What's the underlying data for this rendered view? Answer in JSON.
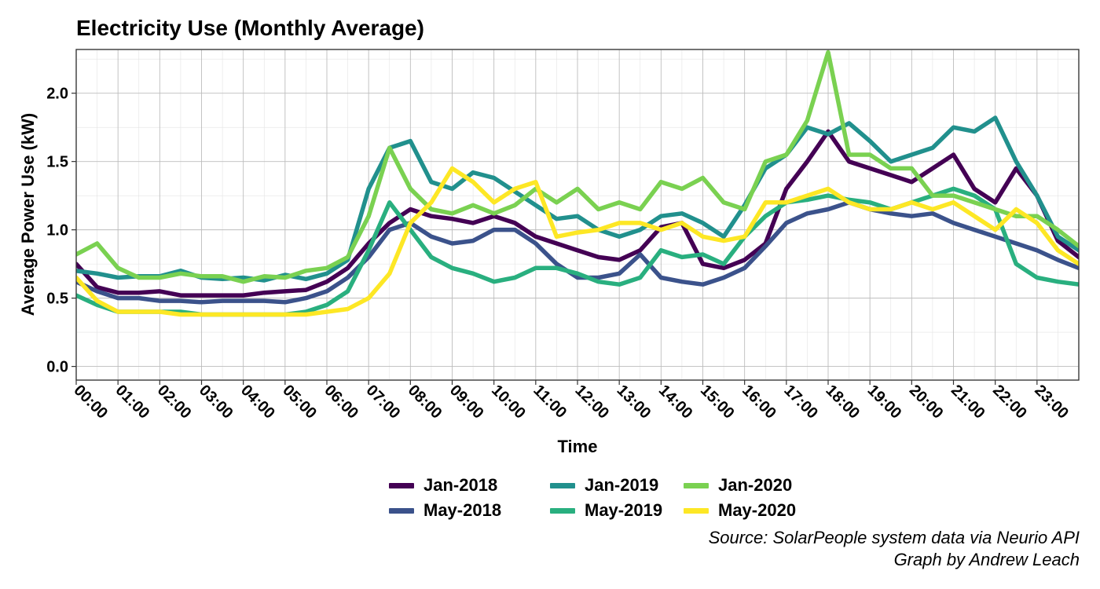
{
  "chart_data": {
    "type": "line",
    "title": "Electricity Use (Monthly Average)",
    "xlabel": "Time",
    "ylabel": "Average Power Use (kW)",
    "x_ticks": [
      "00:00",
      "01:00",
      "02:00",
      "03:00",
      "04:00",
      "05:00",
      "06:00",
      "07:00",
      "08:00",
      "09:00",
      "10:00",
      "11:00",
      "12:00",
      "13:00",
      "14:00",
      "15:00",
      "16:00",
      "17:00",
      "18:00",
      "19:00",
      "20:00",
      "21:00",
      "22:00",
      "23:00"
    ],
    "y_ticks": [
      "0.0",
      "0.5",
      "1.0",
      "1.5",
      "2.0"
    ],
    "ylim": [
      -0.1,
      2.32
    ],
    "x_range_hours": [
      0,
      24
    ],
    "grid": true,
    "legend_position": "bottom",
    "series": [
      {
        "name": "Jan-2018",
        "color": "#440154",
        "x": [
          0,
          0.5,
          1,
          1.5,
          2,
          2.5,
          3,
          3.5,
          4,
          4.5,
          5,
          5.5,
          6,
          6.5,
          7,
          7.5,
          8,
          8.5,
          9,
          9.5,
          10,
          10.5,
          11,
          11.5,
          12,
          12.5,
          13,
          13.5,
          14,
          14.5,
          15,
          15.5,
          16,
          16.5,
          17,
          17.5,
          18,
          18.5,
          19,
          19.5,
          20,
          20.5,
          21,
          21.5,
          22,
          22.5,
          23,
          23.5,
          24
        ],
        "y": [
          0.75,
          0.58,
          0.54,
          0.54,
          0.55,
          0.52,
          0.52,
          0.52,
          0.52,
          0.54,
          0.55,
          0.56,
          0.62,
          0.72,
          0.9,
          1.05,
          1.15,
          1.1,
          1.08,
          1.05,
          1.1,
          1.05,
          0.95,
          0.9,
          0.85,
          0.8,
          0.78,
          0.85,
          1.02,
          1.05,
          0.75,
          0.72,
          0.78,
          0.9,
          1.3,
          1.5,
          1.72,
          1.5,
          1.45,
          1.4,
          1.35,
          1.45,
          1.55,
          1.3,
          1.2,
          1.45,
          1.25,
          0.92,
          0.8
        ]
      },
      {
        "name": "May-2018",
        "color": "#3b528b",
        "x": [
          0,
          0.5,
          1,
          1.5,
          2,
          2.5,
          3,
          3.5,
          4,
          4.5,
          5,
          5.5,
          6,
          6.5,
          7,
          7.5,
          8,
          8.5,
          9,
          9.5,
          10,
          10.5,
          11,
          11.5,
          12,
          12.5,
          13,
          13.5,
          14,
          14.5,
          15,
          15.5,
          16,
          16.5,
          17,
          17.5,
          18,
          18.5,
          19,
          19.5,
          20,
          20.5,
          21,
          21.5,
          22,
          22.5,
          23,
          23.5,
          24
        ],
        "y": [
          0.62,
          0.55,
          0.5,
          0.5,
          0.48,
          0.48,
          0.47,
          0.48,
          0.48,
          0.48,
          0.47,
          0.5,
          0.55,
          0.65,
          0.8,
          1.0,
          1.05,
          0.95,
          0.9,
          0.92,
          1.0,
          1.0,
          0.9,
          0.75,
          0.65,
          0.65,
          0.68,
          0.82,
          0.65,
          0.62,
          0.6,
          0.65,
          0.72,
          0.88,
          1.05,
          1.12,
          1.15,
          1.2,
          1.15,
          1.12,
          1.1,
          1.12,
          1.05,
          1.0,
          0.95,
          0.9,
          0.85,
          0.78,
          0.72
        ]
      },
      {
        "name": "Jan-2019",
        "color": "#21908d",
        "x": [
          0,
          0.5,
          1,
          1.5,
          2,
          2.5,
          3,
          3.5,
          4,
          4.5,
          5,
          5.5,
          6,
          6.5,
          7,
          7.5,
          8,
          8.5,
          9,
          9.5,
          10,
          10.5,
          11,
          11.5,
          12,
          12.5,
          13,
          13.5,
          14,
          14.5,
          15,
          15.5,
          16,
          16.5,
          17,
          17.5,
          18,
          18.5,
          19,
          19.5,
          20,
          20.5,
          21,
          21.5,
          22,
          22.5,
          23,
          23.5,
          24
        ],
        "y": [
          0.7,
          0.68,
          0.65,
          0.66,
          0.66,
          0.7,
          0.65,
          0.64,
          0.65,
          0.63,
          0.67,
          0.64,
          0.68,
          0.78,
          1.3,
          1.6,
          1.65,
          1.35,
          1.3,
          1.42,
          1.38,
          1.28,
          1.18,
          1.08,
          1.1,
          1.0,
          0.95,
          1.0,
          1.1,
          1.12,
          1.05,
          0.95,
          1.18,
          1.45,
          1.55,
          1.75,
          1.7,
          1.78,
          1.65,
          1.5,
          1.55,
          1.6,
          1.75,
          1.72,
          1.82,
          1.5,
          1.25,
          0.95,
          0.85
        ]
      },
      {
        "name": "May-2019",
        "color": "#29af7f",
        "x": [
          0,
          0.5,
          1,
          1.5,
          2,
          2.5,
          3,
          3.5,
          4,
          4.5,
          5,
          5.5,
          6,
          6.5,
          7,
          7.5,
          8,
          8.5,
          9,
          9.5,
          10,
          10.5,
          11,
          11.5,
          12,
          12.5,
          13,
          13.5,
          14,
          14.5,
          15,
          15.5,
          16,
          16.5,
          17,
          17.5,
          18,
          18.5,
          19,
          19.5,
          20,
          20.5,
          21,
          21.5,
          22,
          22.5,
          23,
          23.5,
          24
        ],
        "y": [
          0.52,
          0.45,
          0.4,
          0.4,
          0.4,
          0.4,
          0.38,
          0.38,
          0.38,
          0.38,
          0.38,
          0.4,
          0.45,
          0.55,
          0.85,
          1.2,
          1.0,
          0.8,
          0.72,
          0.68,
          0.62,
          0.65,
          0.72,
          0.72,
          0.68,
          0.62,
          0.6,
          0.65,
          0.85,
          0.8,
          0.82,
          0.75,
          0.95,
          1.1,
          1.2,
          1.22,
          1.25,
          1.22,
          1.2,
          1.15,
          1.2,
          1.25,
          1.3,
          1.25,
          1.15,
          0.75,
          0.65,
          0.62,
          0.6
        ]
      },
      {
        "name": "Jan-2020",
        "color": "#7ad151",
        "x": [
          0,
          0.5,
          1,
          1.5,
          2,
          2.5,
          3,
          3.5,
          4,
          4.5,
          5,
          5.5,
          6,
          6.5,
          7,
          7.5,
          8,
          8.5,
          9,
          9.5,
          10,
          10.5,
          11,
          11.5,
          12,
          12.5,
          13,
          13.5,
          14,
          14.5,
          15,
          15.5,
          16,
          16.5,
          17,
          17.5,
          18,
          18.5,
          19,
          19.5,
          20,
          20.5,
          21,
          21.5,
          22,
          22.5,
          23,
          23.5,
          24
        ],
        "y": [
          0.82,
          0.9,
          0.72,
          0.65,
          0.65,
          0.68,
          0.66,
          0.66,
          0.62,
          0.66,
          0.65,
          0.7,
          0.72,
          0.8,
          1.1,
          1.6,
          1.3,
          1.15,
          1.12,
          1.18,
          1.12,
          1.18,
          1.3,
          1.2,
          1.3,
          1.15,
          1.2,
          1.15,
          1.35,
          1.3,
          1.38,
          1.2,
          1.15,
          1.5,
          1.55,
          1.8,
          2.3,
          1.55,
          1.55,
          1.45,
          1.45,
          1.25,
          1.25,
          1.2,
          1.15,
          1.1,
          1.1,
          1.0,
          0.88
        ]
      },
      {
        "name": "May-2020",
        "color": "#fde725",
        "x": [
          0,
          0.5,
          1,
          1.5,
          2,
          2.5,
          3,
          3.5,
          4,
          4.5,
          5,
          5.5,
          6,
          6.5,
          7,
          7.5,
          8,
          8.5,
          9,
          9.5,
          10,
          10.5,
          11,
          11.5,
          12,
          12.5,
          13,
          13.5,
          14,
          14.5,
          15,
          15.5,
          16,
          16.5,
          17,
          17.5,
          18,
          18.5,
          19,
          19.5,
          20,
          20.5,
          21,
          21.5,
          22,
          22.5,
          23,
          23.5,
          24
        ],
        "y": [
          0.65,
          0.48,
          0.4,
          0.4,
          0.4,
          0.38,
          0.38,
          0.38,
          0.38,
          0.38,
          0.38,
          0.38,
          0.4,
          0.42,
          0.5,
          0.68,
          1.05,
          1.2,
          1.45,
          1.35,
          1.2,
          1.3,
          1.35,
          0.95,
          0.98,
          1.0,
          1.05,
          1.05,
          1.0,
          1.05,
          0.95,
          0.92,
          0.95,
          1.2,
          1.2,
          1.25,
          1.3,
          1.2,
          1.15,
          1.15,
          1.2,
          1.15,
          1.2,
          1.1,
          1.0,
          1.15,
          1.05,
          0.85,
          0.75
        ]
      }
    ]
  },
  "caption": {
    "source": "Source: SolarPeople system data via Neurio API",
    "author": "Graph by Andrew Leach"
  }
}
